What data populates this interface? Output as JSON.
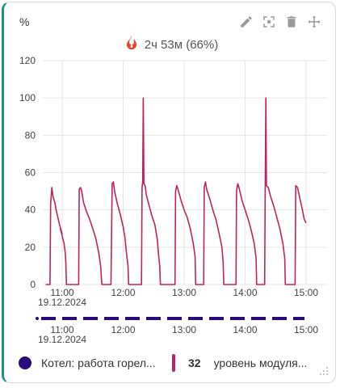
{
  "widget": {
    "unit_label": "%",
    "status_text": "2ч 53м (66%)",
    "icons": [
      "pencil-icon",
      "fullscreen-icon",
      "trash-icon",
      "move-icon"
    ],
    "legend": [
      {
        "label": "Котел: работа горел...",
        "color": "#2a0a7a"
      },
      {
        "value": "32",
        "label": "уровень модуля...",
        "color": "#c0225f"
      }
    ]
  },
  "chart_data": {
    "type": "line",
    "ylabel": "%",
    "ylim": [
      0,
      120
    ],
    "yticks": [
      "0",
      "20",
      "40",
      "60",
      "80",
      "100",
      "120"
    ],
    "xticks": [
      {
        "t": 0.0,
        "label": "11:00",
        "sublabel": "19.12.2024"
      },
      {
        "t": 1.0,
        "label": "12:00"
      },
      {
        "t": 2.0,
        "label": "13:00"
      },
      {
        "t": 3.0,
        "label": "14:00"
      },
      {
        "t": 4.0,
        "label": "15:00"
      }
    ],
    "xlim": [
      -0.27,
      4.33
    ],
    "grid": true,
    "series": [
      {
        "color": "#c0225f",
        "points": [
          [
            -0.27,
            0
          ],
          [
            -0.2,
            0
          ],
          [
            -0.19,
            43
          ],
          [
            -0.17,
            52
          ],
          [
            -0.15,
            47
          ],
          [
            -0.12,
            44
          ],
          [
            -0.1,
            40
          ],
          [
            -0.05,
            33
          ],
          [
            0.0,
            27
          ],
          [
            -0.03,
            30
          ],
          [
            0.03,
            22
          ],
          [
            0.05,
            17
          ],
          [
            0.06,
            12
          ],
          [
            0.07,
            0
          ],
          [
            0.27,
            0
          ],
          [
            0.28,
            51
          ],
          [
            0.3,
            52
          ],
          [
            0.32,
            50
          ],
          [
            0.35,
            44
          ],
          [
            0.4,
            39
          ],
          [
            0.45,
            35
          ],
          [
            0.5,
            30
          ],
          [
            0.55,
            25
          ],
          [
            0.6,
            17
          ],
          [
            0.63,
            10
          ],
          [
            0.65,
            0
          ],
          [
            0.8,
            0
          ],
          [
            0.82,
            54
          ],
          [
            0.84,
            55
          ],
          [
            0.86,
            50
          ],
          [
            0.9,
            44
          ],
          [
            0.95,
            38
          ],
          [
            1.0,
            31
          ],
          [
            1.03,
            25
          ],
          [
            1.05,
            18
          ],
          [
            1.08,
            10
          ],
          [
            1.09,
            0
          ],
          [
            1.3,
            0
          ],
          [
            1.31,
            52
          ],
          [
            1.32,
            55
          ],
          [
            1.33,
            100
          ],
          [
            1.34,
            54
          ],
          [
            1.36,
            53
          ],
          [
            1.38,
            48
          ],
          [
            1.42,
            43
          ],
          [
            1.47,
            37
          ],
          [
            1.52,
            32
          ],
          [
            1.56,
            24
          ],
          [
            1.58,
            16
          ],
          [
            1.6,
            10
          ],
          [
            1.61,
            0
          ],
          [
            1.85,
            0
          ],
          [
            1.86,
            50
          ],
          [
            1.88,
            53
          ],
          [
            1.9,
            51
          ],
          [
            1.95,
            45
          ],
          [
            2.0,
            40
          ],
          [
            2.05,
            36
          ],
          [
            2.1,
            30
          ],
          [
            2.15,
            22
          ],
          [
            2.18,
            15
          ],
          [
            2.19,
            0
          ],
          [
            2.32,
            0
          ],
          [
            2.33,
            52
          ],
          [
            2.35,
            55
          ],
          [
            2.37,
            51
          ],
          [
            2.42,
            46
          ],
          [
            2.47,
            40
          ],
          [
            2.52,
            35
          ],
          [
            2.57,
            28
          ],
          [
            2.62,
            20
          ],
          [
            2.64,
            12
          ],
          [
            2.65,
            0
          ],
          [
            2.85,
            0
          ],
          [
            2.86,
            50
          ],
          [
            2.88,
            54
          ],
          [
            2.9,
            52
          ],
          [
            2.95,
            45
          ],
          [
            3.0,
            40
          ],
          [
            3.05,
            35
          ],
          [
            3.1,
            29
          ],
          [
            3.15,
            22
          ],
          [
            3.18,
            14
          ],
          [
            3.19,
            0
          ],
          [
            3.32,
            0
          ],
          [
            3.33,
            52
          ],
          [
            3.34,
            100
          ],
          [
            3.35,
            53
          ],
          [
            3.38,
            52
          ],
          [
            3.42,
            47
          ],
          [
            3.47,
            42
          ],
          [
            3.52,
            36
          ],
          [
            3.57,
            30
          ],
          [
            3.62,
            22
          ],
          [
            3.65,
            14
          ],
          [
            3.66,
            0
          ],
          [
            3.82,
            0
          ],
          [
            3.83,
            53
          ],
          [
            3.86,
            52
          ],
          [
            3.9,
            46
          ],
          [
            3.94,
            40
          ],
          [
            3.97,
            35
          ],
          [
            4.0,
            33
          ]
        ]
      }
    ],
    "burner_timeline": {
      "color": "#2a0a7a",
      "dashed": true,
      "xticks": [
        "11:00",
        "19.12.2024",
        "12:00",
        "13:00",
        "14:00",
        "15:00"
      ]
    }
  }
}
